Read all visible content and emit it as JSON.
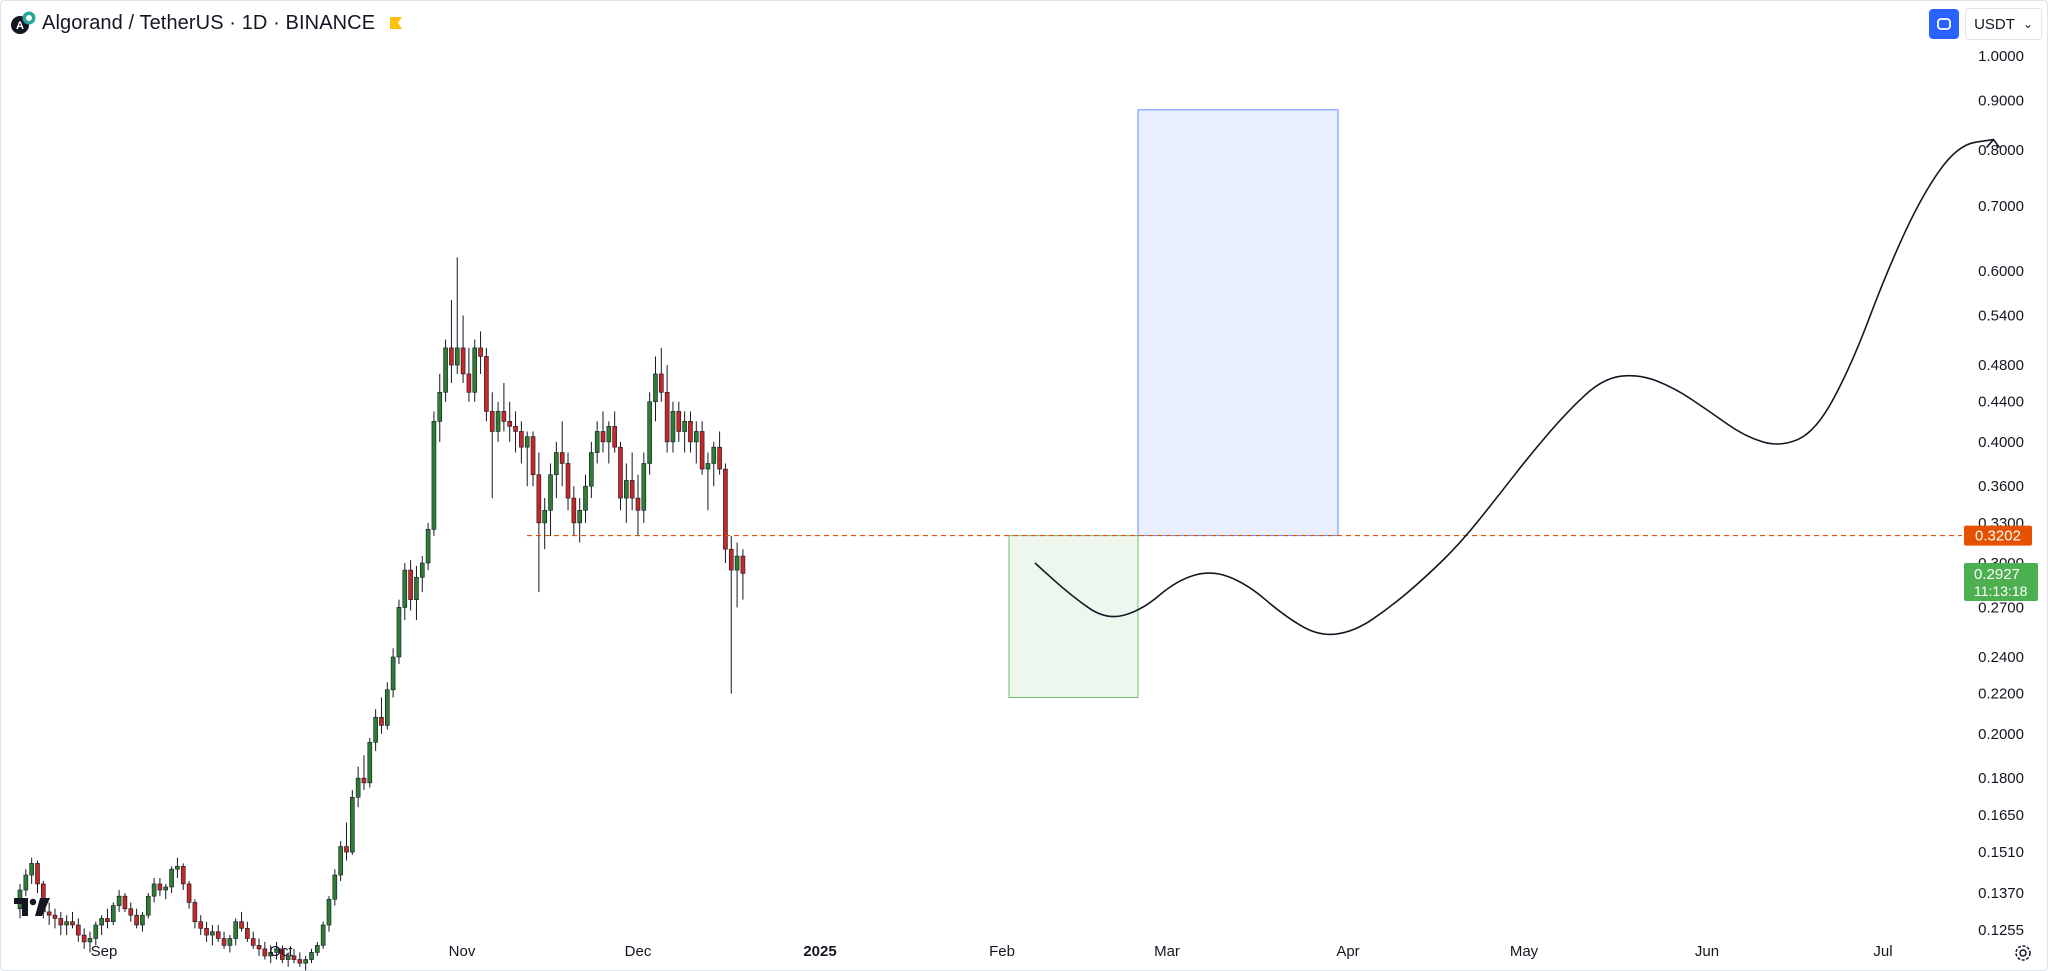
{
  "header": {
    "title": "Algorand / TetherUS · 1D · BINANCE",
    "currency": "USDT"
  },
  "colors": {
    "up": "#089981",
    "up_candle": "#2e7d32",
    "down": "#c62828",
    "resistance": "#e65100",
    "current": "#4caf50",
    "target_box": "#2962ff",
    "stop_box": "#4caf50"
  },
  "chart_data": {
    "type": "candlestick",
    "y_scale": "log",
    "ylim": [
      0.1255,
      1.0
    ],
    "y_ticks": [
      "1.0000",
      "0.9000",
      "0.8000",
      "0.7000",
      "0.6000",
      "0.5400",
      "0.4800",
      "0.4400",
      "0.4000",
      "0.3600",
      "0.3300",
      "0.3000",
      "0.2700",
      "0.2400",
      "0.2200",
      "0.2000",
      "0.1800",
      "0.1650",
      "0.1510",
      "0.1370",
      "0.1255"
    ],
    "x_ticks": [
      {
        "label": "Sep",
        "bold": false
      },
      {
        "label": "Oct",
        "bold": false
      },
      {
        "label": "Nov",
        "bold": false
      },
      {
        "label": "Dec",
        "bold": false
      },
      {
        "label": "2025",
        "bold": true
      },
      {
        "label": "Feb",
        "bold": false
      },
      {
        "label": "Mar",
        "bold": false
      },
      {
        "label": "Apr",
        "bold": false
      },
      {
        "label": "May",
        "bold": false
      },
      {
        "label": "Jun",
        "bold": false
      },
      {
        "label": "Jul",
        "bold": false
      }
    ],
    "resistance_level": {
      "value": 0.3202,
      "label": "0.3202"
    },
    "current_price": {
      "value": 0.2927,
      "label": "0.2927",
      "countdown": "11:13:18"
    },
    "target_zone": {
      "top": 0.88,
      "bottom": 0.3202
    },
    "entry_zone": {
      "top": 0.3202,
      "bottom": 0.218
    },
    "candles": [
      [
        0.132,
        0.14,
        0.129,
        0.138
      ],
      [
        0.138,
        0.145,
        0.136,
        0.143
      ],
      [
        0.143,
        0.149,
        0.14,
        0.147
      ],
      [
        0.147,
        0.148,
        0.137,
        0.14
      ],
      [
        0.14,
        0.141,
        0.129,
        0.131
      ],
      [
        0.131,
        0.134,
        0.127,
        0.13
      ],
      [
        0.13,
        0.132,
        0.126,
        0.129
      ],
      [
        0.129,
        0.131,
        0.124,
        0.127
      ],
      [
        0.127,
        0.13,
        0.124,
        0.128
      ],
      [
        0.128,
        0.131,
        0.126,
        0.127
      ],
      [
        0.127,
        0.129,
        0.122,
        0.124
      ],
      [
        0.124,
        0.126,
        0.12,
        0.122
      ],
      [
        0.122,
        0.125,
        0.119,
        0.123
      ],
      [
        0.123,
        0.128,
        0.121,
        0.127
      ],
      [
        0.127,
        0.13,
        0.124,
        0.129
      ],
      [
        0.129,
        0.132,
        0.126,
        0.128
      ],
      [
        0.128,
        0.134,
        0.127,
        0.133
      ],
      [
        0.133,
        0.138,
        0.131,
        0.136
      ],
      [
        0.136,
        0.137,
        0.131,
        0.132
      ],
      [
        0.132,
        0.134,
        0.128,
        0.13
      ],
      [
        0.13,
        0.132,
        0.126,
        0.127
      ],
      [
        0.127,
        0.131,
        0.125,
        0.13
      ],
      [
        0.13,
        0.137,
        0.129,
        0.136
      ],
      [
        0.136,
        0.142,
        0.134,
        0.14
      ],
      [
        0.14,
        0.142,
        0.136,
        0.138
      ],
      [
        0.138,
        0.14,
        0.135,
        0.139
      ],
      [
        0.139,
        0.146,
        0.137,
        0.145
      ],
      [
        0.145,
        0.149,
        0.142,
        0.146
      ],
      [
        0.146,
        0.147,
        0.138,
        0.14
      ],
      [
        0.14,
        0.141,
        0.132,
        0.134
      ],
      [
        0.134,
        0.135,
        0.126,
        0.128
      ],
      [
        0.128,
        0.13,
        0.124,
        0.126
      ],
      [
        0.126,
        0.128,
        0.122,
        0.124
      ],
      [
        0.124,
        0.127,
        0.121,
        0.125
      ],
      [
        0.125,
        0.127,
        0.122,
        0.123
      ],
      [
        0.123,
        0.125,
        0.12,
        0.121
      ],
      [
        0.121,
        0.124,
        0.119,
        0.123
      ],
      [
        0.123,
        0.129,
        0.121,
        0.128
      ],
      [
        0.128,
        0.131,
        0.125,
        0.126
      ],
      [
        0.126,
        0.128,
        0.122,
        0.123
      ],
      [
        0.123,
        0.125,
        0.12,
        0.121
      ],
      [
        0.121,
        0.123,
        0.118,
        0.12
      ],
      [
        0.12,
        0.122,
        0.117,
        0.118
      ],
      [
        0.118,
        0.121,
        0.116,
        0.119
      ],
      [
        0.119,
        0.122,
        0.117,
        0.12
      ],
      [
        0.12,
        0.121,
        0.116,
        0.117
      ],
      [
        0.117,
        0.119,
        0.115,
        0.118
      ],
      [
        0.118,
        0.12,
        0.116,
        0.117
      ],
      [
        0.117,
        0.119,
        0.115,
        0.116
      ],
      [
        0.116,
        0.118,
        0.114,
        0.117
      ],
      [
        0.117,
        0.12,
        0.116,
        0.119
      ],
      [
        0.119,
        0.122,
        0.118,
        0.121
      ],
      [
        0.121,
        0.128,
        0.12,
        0.127
      ],
      [
        0.127,
        0.136,
        0.125,
        0.135
      ],
      [
        0.135,
        0.145,
        0.133,
        0.143
      ],
      [
        0.143,
        0.155,
        0.141,
        0.153
      ],
      [
        0.153,
        0.162,
        0.148,
        0.151
      ],
      [
        0.151,
        0.175,
        0.15,
        0.172
      ],
      [
        0.172,
        0.185,
        0.168,
        0.18
      ],
      [
        0.18,
        0.19,
        0.175,
        0.178
      ],
      [
        0.178,
        0.198,
        0.176,
        0.196
      ],
      [
        0.196,
        0.212,
        0.192,
        0.208
      ],
      [
        0.208,
        0.218,
        0.2,
        0.204
      ],
      [
        0.204,
        0.226,
        0.202,
        0.222
      ],
      [
        0.222,
        0.245,
        0.218,
        0.24
      ],
      [
        0.24,
        0.275,
        0.236,
        0.27
      ],
      [
        0.27,
        0.3,
        0.262,
        0.295
      ],
      [
        0.295,
        0.302,
        0.268,
        0.275
      ],
      [
        0.275,
        0.298,
        0.262,
        0.29
      ],
      [
        0.29,
        0.305,
        0.28,
        0.3
      ],
      [
        0.3,
        0.33,
        0.295,
        0.325
      ],
      [
        0.325,
        0.43,
        0.32,
        0.42
      ],
      [
        0.42,
        0.47,
        0.4,
        0.45
      ],
      [
        0.45,
        0.51,
        0.44,
        0.5
      ],
      [
        0.5,
        0.56,
        0.46,
        0.48
      ],
      [
        0.48,
        0.62,
        0.47,
        0.5
      ],
      [
        0.5,
        0.54,
        0.46,
        0.47
      ],
      [
        0.47,
        0.5,
        0.44,
        0.45
      ],
      [
        0.45,
        0.51,
        0.44,
        0.5
      ],
      [
        0.5,
        0.52,
        0.47,
        0.49
      ],
      [
        0.49,
        0.5,
        0.42,
        0.43
      ],
      [
        0.43,
        0.45,
        0.35,
        0.41
      ],
      [
        0.41,
        0.44,
        0.4,
        0.43
      ],
      [
        0.43,
        0.46,
        0.41,
        0.42
      ],
      [
        0.42,
        0.44,
        0.4,
        0.415
      ],
      [
        0.415,
        0.43,
        0.39,
        0.41
      ],
      [
        0.41,
        0.42,
        0.38,
        0.395
      ],
      [
        0.395,
        0.41,
        0.36,
        0.405
      ],
      [
        0.405,
        0.41,
        0.36,
        0.37
      ],
      [
        0.37,
        0.39,
        0.28,
        0.33
      ],
      [
        0.33,
        0.35,
        0.31,
        0.34
      ],
      [
        0.34,
        0.38,
        0.32,
        0.37
      ],
      [
        0.37,
        0.4,
        0.35,
        0.39
      ],
      [
        0.39,
        0.42,
        0.36,
        0.38
      ],
      [
        0.38,
        0.39,
        0.34,
        0.35
      ],
      [
        0.35,
        0.36,
        0.32,
        0.33
      ],
      [
        0.33,
        0.35,
        0.315,
        0.34
      ],
      [
        0.34,
        0.37,
        0.33,
        0.36
      ],
      [
        0.36,
        0.4,
        0.35,
        0.39
      ],
      [
        0.39,
        0.42,
        0.38,
        0.41
      ],
      [
        0.41,
        0.43,
        0.39,
        0.4
      ],
      [
        0.4,
        0.42,
        0.38,
        0.415
      ],
      [
        0.415,
        0.43,
        0.39,
        0.395
      ],
      [
        0.395,
        0.4,
        0.34,
        0.35
      ],
      [
        0.35,
        0.38,
        0.33,
        0.365
      ],
      [
        0.365,
        0.39,
        0.34,
        0.35
      ],
      [
        0.35,
        0.37,
        0.32,
        0.34
      ],
      [
        0.34,
        0.39,
        0.33,
        0.38
      ],
      [
        0.38,
        0.45,
        0.37,
        0.44
      ],
      [
        0.44,
        0.49,
        0.42,
        0.47
      ],
      [
        0.47,
        0.5,
        0.44,
        0.45
      ],
      [
        0.45,
        0.48,
        0.39,
        0.4
      ],
      [
        0.4,
        0.44,
        0.39,
        0.43
      ],
      [
        0.43,
        0.44,
        0.4,
        0.41
      ],
      [
        0.41,
        0.43,
        0.39,
        0.42
      ],
      [
        0.42,
        0.43,
        0.39,
        0.4
      ],
      [
        0.4,
        0.42,
        0.38,
        0.41
      ],
      [
        0.41,
        0.42,
        0.37,
        0.375
      ],
      [
        0.375,
        0.39,
        0.34,
        0.38
      ],
      [
        0.38,
        0.4,
        0.36,
        0.395
      ],
      [
        0.395,
        0.41,
        0.37,
        0.375
      ],
      [
        0.375,
        0.38,
        0.3,
        0.31
      ],
      [
        0.31,
        0.32,
        0.22,
        0.295
      ],
      [
        0.295,
        0.315,
        0.27,
        0.305
      ],
      [
        0.305,
        0.31,
        0.275,
        0.2927
      ]
    ],
    "annotation_path": [
      [
        0.3
      ],
      [
        0.278
      ],
      [
        0.262
      ],
      [
        0.268
      ],
      [
        0.288
      ],
      [
        0.295
      ],
      [
        0.285
      ],
      [
        0.265
      ],
      [
        0.252
      ],
      [
        0.255
      ],
      [
        0.27
      ],
      [
        0.29
      ],
      [
        0.315
      ],
      [
        0.35
      ],
      [
        0.39
      ],
      [
        0.43
      ],
      [
        0.465
      ],
      [
        0.47
      ],
      [
        0.455
      ],
      [
        0.43
      ],
      [
        0.405
      ],
      [
        0.395
      ],
      [
        0.41
      ],
      [
        0.48
      ],
      [
        0.6
      ],
      [
        0.72
      ],
      [
        0.81
      ],
      [
        0.82
      ]
    ]
  }
}
